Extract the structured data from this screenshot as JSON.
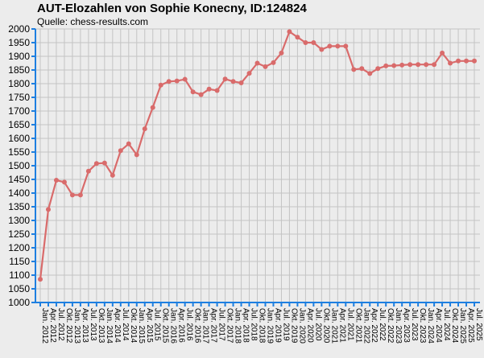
{
  "header": {
    "title": "AUT-Elozahlen von Sophie Konecny, ID:124824",
    "subtitle": "Quelle: chess-results.com"
  },
  "chart_data": {
    "type": "line",
    "title": "AUT-Elozahlen von Sophie Konecny, ID:124824",
    "subtitle": "Quelle: chess-results.com",
    "xlabel": "",
    "ylabel": "",
    "ylim": [
      1000,
      2000
    ],
    "ytick_step": 50,
    "grid": true,
    "line_color": "#d96b6b",
    "axis_color": "#1e7fe0",
    "categories": [
      "Jan. 2012",
      "Apr. 2012",
      "Jul. 2012",
      "Okt. 2012",
      "Jan. 2013",
      "Apr. 2013",
      "Jul. 2013",
      "Okt. 2013",
      "Jan. 2014",
      "Apr. 2014",
      "Jul. 2014",
      "Okt. 2014",
      "Jan. 2015",
      "Apr. 2015",
      "Jul. 2015",
      "Okt. 2015",
      "Jan. 2016",
      "Apr. 2016",
      "Jul. 2016",
      "Okt. 2016",
      "Jan. 2017",
      "Apr. 2017",
      "Jul. 2017",
      "Okt. 2017",
      "Jan. 2018",
      "Apr. 2018",
      "Jul. 2018",
      "Okt. 2018",
      "Jan. 2019",
      "Apr. 2019",
      "Jul. 2019",
      "Okt. 2019",
      "Jan. 2020",
      "Apr. 2020",
      "Jul. 2020",
      "Okt. 2020",
      "Jan. 2021",
      "Apr. 2021",
      "Jul. 2021",
      "Okt. 2021",
      "Jan. 2022",
      "Apr. 2022",
      "Jul. 2022",
      "Okt. 2022",
      "Jan. 2023",
      "Apr. 2023",
      "Jul. 2023",
      "Okt. 2023",
      "Jan. 2024",
      "Apr. 2024",
      "Jul. 2024",
      "Okt. 2024",
      "Jan. 2025",
      "Apr. 2025",
      "Jul. 2025"
    ],
    "series": [
      {
        "values": [
          1085,
          1340,
          1447,
          1440,
          1393,
          1393,
          1480,
          1508,
          1510,
          1465,
          1555,
          1580,
          1540,
          1635,
          1713,
          1795,
          1808,
          1810,
          1816,
          1770,
          1760,
          1780,
          1775,
          1817,
          1808,
          1803,
          1838,
          1875,
          1862,
          1877,
          1912,
          1990,
          1970,
          1950,
          1950,
          1925,
          1937,
          1937,
          1937,
          1852,
          1855,
          1837,
          1855,
          1865,
          1866,
          1868,
          1870,
          1870,
          1870,
          1870,
          1912,
          1875,
          1883,
          1883,
          1883
        ]
      }
    ]
  }
}
